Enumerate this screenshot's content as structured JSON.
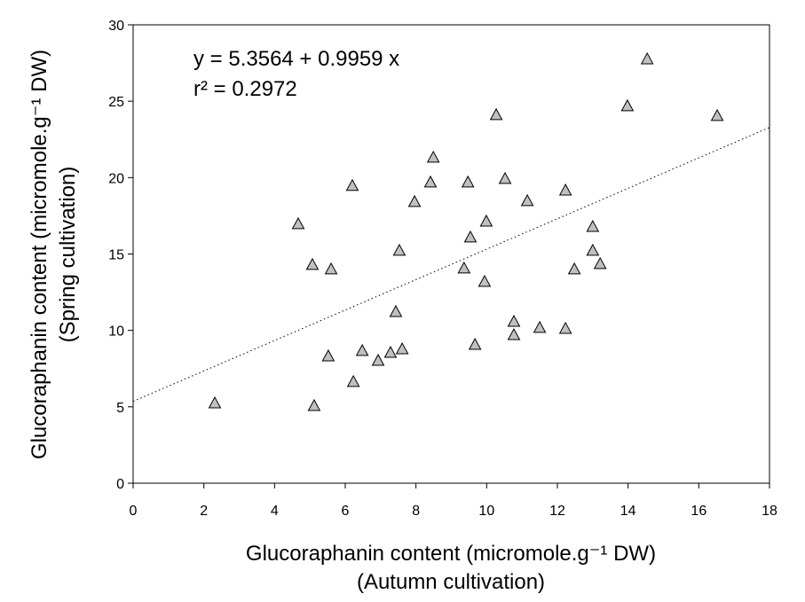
{
  "chart_data": {
    "type": "scatter",
    "x_label": [
      "Glucoraphanin content (micromole.g⁻¹ DW)",
      "(Autumn cultivation)"
    ],
    "y_label": [
      "Glucoraphanin content (micromole.g⁻¹ DW)",
      "(Spring cultivation)"
    ],
    "annotations": [
      "y = 5.3564 + 0.9959 x",
      "r² = 0.2972"
    ],
    "trendline": {
      "intercept": 5.3564,
      "slope": 0.9959
    },
    "marker_color": "#c0c0c0",
    "x": [
      2.31,
      4.67,
      5.07,
      5.6,
      5.12,
      5.52,
      6.23,
      6.48,
      6.93,
      7.28,
      7.61,
      7.43,
      7.53,
      7.96,
      6.2,
      8.41,
      8.49,
      9.47,
      9.54,
      9.36,
      9.67,
      9.94,
      9.99,
      10.27,
      10.52,
      10.77,
      10.77,
      11.15,
      11.5,
      12.23,
      12.23,
      12.48,
      13.0,
      13.0,
      13.21,
      13.98,
      14.54,
      16.52
    ],
    "values": [
      5.22,
      16.95,
      14.28,
      13.99,
      5.05,
      8.3,
      6.62,
      8.65,
      8.01,
      8.53,
      8.76,
      11.2,
      15.21,
      18.4,
      19.45,
      19.68,
      21.3,
      19.68,
      16.08,
      14.05,
      9.05,
      13.17,
      17.12,
      24.09,
      19.91,
      10.56,
      9.69,
      18.46,
      10.16,
      19.15,
      10.1,
      13.99,
      16.77,
      15.21,
      14.34,
      24.67,
      27.74,
      24.03
    ],
    "xlim": [
      0,
      18
    ],
    "xticks": [
      0,
      2,
      4,
      6,
      8,
      10,
      12,
      14,
      16,
      18
    ],
    "ylim": [
      0,
      30
    ],
    "yticks": [
      0,
      5,
      10,
      15,
      20,
      25,
      30
    ]
  }
}
